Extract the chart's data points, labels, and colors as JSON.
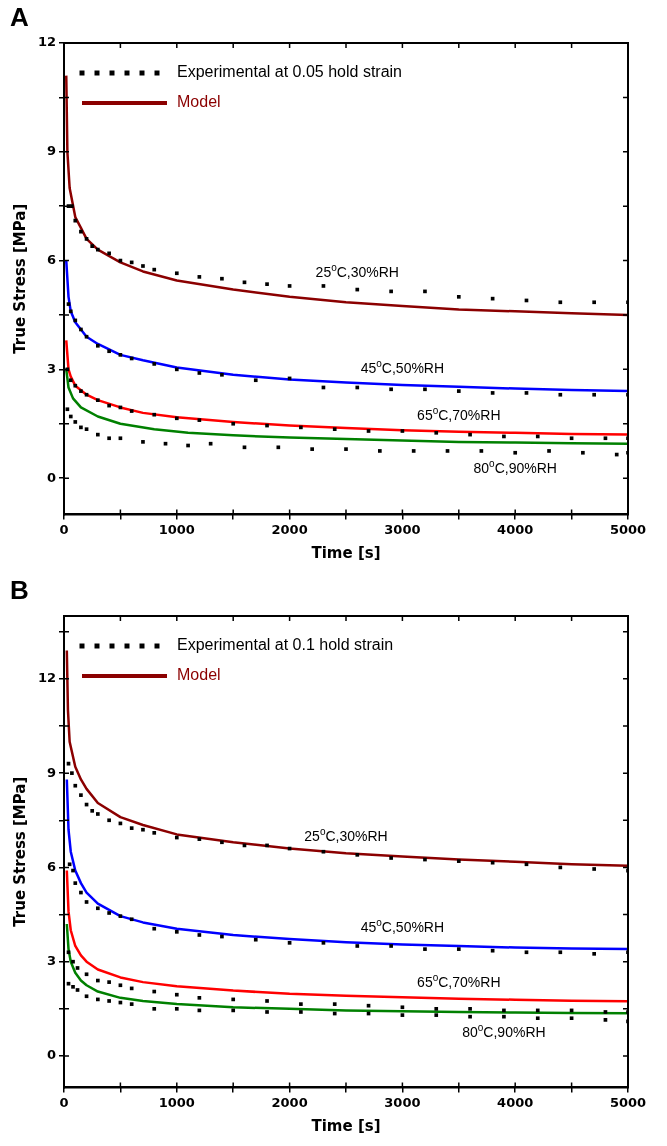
{
  "chart_data": [
    {
      "type": "line",
      "title": "A",
      "xlabel": "Time [s]",
      "ylabel": "True Stress [MPa]",
      "legend": "top left",
      "grid": false,
      "xlim": [
        0,
        5000
      ],
      "ylim": [
        -1,
        12
      ],
      "xticks": [
        0,
        {
          "value": 500,
          "label": null
        },
        1000,
        {
          "value": 1500,
          "label": null
        },
        2000,
        {
          "value": 2500,
          "label": null
        },
        3000,
        {
          "value": 3500,
          "label": null
        },
        4000,
        {
          "value": 4500,
          "label": null
        },
        5000
      ],
      "yticks": [
        0,
        {
          "value": 1.5,
          "label": null
        },
        3,
        {
          "value": 4.5,
          "label": null
        },
        6,
        {
          "value": 7.5,
          "label": null
        },
        9,
        {
          "value": 10.5,
          "label": null
        },
        12
      ],
      "annotations": [
        {
          "text": "25$^{o}$C,30%RH",
          "x": 2600,
          "y": 5.2
        },
        {
          "text": "45$^{o}$C,50%RH",
          "x": 3000,
          "y": 2.57
        },
        {
          "text": "65$^{o}$C,70%RH",
          "x": 3500,
          "y": 1.28
        },
        {
          "text": "80$^{o}$C,90%RH",
          "x": 4000,
          "y": 0.7
        }
      ],
      "series": [
        {
          "type": "scatter",
          "name": "Experimental at 0.05 hold strain",
          "color": "#000000",
          "marker": "square",
          "x": [
            40,
            70,
            100,
            150,
            200,
            250,
            300,
            400,
            500,
            600,
            700,
            800,
            1000,
            1200,
            1400,
            1600,
            1800,
            2000,
            2300,
            2600,
            2900,
            3200,
            3500,
            3800,
            4100,
            4400,
            4700,
            5000
          ],
          "values": [
            7.5,
            7.5,
            7.1,
            6.8,
            6.6,
            6.4,
            6.3,
            6.2,
            6.0,
            5.95,
            5.85,
            5.75,
            5.65,
            5.55,
            5.5,
            5.4,
            5.35,
            5.3,
            5.3,
            5.2,
            5.15,
            5.15,
            5.0,
            4.95,
            4.9,
            4.85,
            4.85,
            4.85
          ]
        },
        {
          "type": "scatter",
          "color": "#000000",
          "marker": "square",
          "x": [
            40,
            60,
            100,
            150,
            200,
            300,
            400,
            500,
            600,
            800,
            1000,
            1200,
            1400,
            1700,
            2000,
            2300,
            2600,
            2900,
            3200,
            3500,
            3800,
            4100,
            4400,
            4700,
            5000
          ],
          "values": [
            4.8,
            4.6,
            4.35,
            4.1,
            3.9,
            3.65,
            3.5,
            3.4,
            3.3,
            3.15,
            3.0,
            2.9,
            2.85,
            2.7,
            2.75,
            2.5,
            2.5,
            2.45,
            2.45,
            2.4,
            2.35,
            2.35,
            2.3,
            2.3,
            2.3
          ]
        },
        {
          "type": "scatter",
          "color": "#000000",
          "marker": "square",
          "x": [
            30,
            60,
            100,
            150,
            200,
            300,
            400,
            500,
            600,
            800,
            1000,
            1200,
            1500,
            1800,
            2100,
            2400,
            2700,
            3000,
            3300,
            3600,
            3900,
            4200,
            4500,
            4800,
            5000
          ],
          "values": [
            3.0,
            2.7,
            2.55,
            2.4,
            2.3,
            2.15,
            2.0,
            1.95,
            1.85,
            1.75,
            1.65,
            1.6,
            1.5,
            1.45,
            1.4,
            1.35,
            1.3,
            1.3,
            1.25,
            1.2,
            1.15,
            1.15,
            1.1,
            1.1,
            1.1
          ]
        },
        {
          "type": "scatter",
          "color": "#000000",
          "marker": "square",
          "x": [
            30,
            60,
            100,
            150,
            200,
            300,
            400,
            500,
            700,
            900,
            1100,
            1300,
            1600,
            1900,
            2200,
            2500,
            2800,
            3100,
            3400,
            3700,
            4000,
            4300,
            4600,
            4900,
            5000
          ],
          "values": [
            1.9,
            1.7,
            1.55,
            1.4,
            1.35,
            1.2,
            1.1,
            1.1,
            1.0,
            0.95,
            0.9,
            0.95,
            0.85,
            0.85,
            0.8,
            0.8,
            0.75,
            0.75,
            0.75,
            0.75,
            0.7,
            0.75,
            0.7,
            0.65,
            0.7
          ]
        },
        {
          "name": "Model",
          "color": "#8b0000",
          "x": [
            20,
            30,
            50,
            100,
            150,
            200,
            300,
            500,
            700,
            1000,
            1500,
            2000,
            2500,
            3000,
            3500,
            4000,
            4500,
            5000
          ],
          "values": [
            11.1,
            9.0,
            8.0,
            7.2,
            6.9,
            6.6,
            6.3,
            5.95,
            5.7,
            5.45,
            5.2,
            5.0,
            4.85,
            4.75,
            4.65,
            4.6,
            4.55,
            4.5
          ]
        },
        {
          "color": "#0000ff",
          "x": [
            20,
            40,
            60,
            100,
            200,
            300,
            500,
            700,
            1000,
            1500,
            2000,
            2500,
            3000,
            3500,
            4000,
            4500,
            5000
          ],
          "values": [
            6.0,
            5.0,
            4.6,
            4.3,
            3.9,
            3.7,
            3.4,
            3.25,
            3.05,
            2.85,
            2.72,
            2.64,
            2.57,
            2.52,
            2.47,
            2.43,
            2.4
          ]
        },
        {
          "color": "#ff0000",
          "x": [
            20,
            40,
            60,
            100,
            200,
            300,
            500,
            700,
            1000,
            1500,
            2000,
            2500,
            3000,
            3500,
            4000,
            4500,
            5000
          ],
          "values": [
            3.8,
            3.0,
            2.8,
            2.55,
            2.3,
            2.15,
            1.95,
            1.8,
            1.68,
            1.55,
            1.45,
            1.38,
            1.32,
            1.28,
            1.25,
            1.22,
            1.2
          ]
        },
        {
          "color": "#008000",
          "x": [
            20,
            40,
            80,
            150,
            300,
            500,
            800,
            1100,
            1500,
            2000,
            2500,
            3000,
            3500,
            4000,
            4500,
            5000
          ],
          "values": [
            3.0,
            2.5,
            2.2,
            1.95,
            1.7,
            1.5,
            1.35,
            1.25,
            1.18,
            1.12,
            1.08,
            1.04,
            1.0,
            0.98,
            0.96,
            0.95
          ]
        }
      ]
    },
    {
      "type": "line",
      "title": "B",
      "xlabel": "Time [s]",
      "ylabel": "True Stress [MPa]",
      "legend": "top left",
      "grid": false,
      "xlim": [
        0,
        5000
      ],
      "ylim": [
        -1,
        14
      ],
      "xticks": [
        0,
        {
          "value": 500,
          "label": null
        },
        1000,
        {
          "value": 1500,
          "label": null
        },
        2000,
        {
          "value": 2500,
          "label": null
        },
        3000,
        {
          "value": 3500,
          "label": null
        },
        4000,
        {
          "value": 4500,
          "label": null
        },
        5000
      ],
      "yticks": [
        0,
        {
          "value": 1.5,
          "label": null
        },
        3,
        {
          "value": 4.5,
          "label": null
        },
        6,
        {
          "value": 7.5,
          "label": null
        },
        9,
        {
          "value": 10.5,
          "label": null
        },
        12,
        {
          "value": 13.5,
          "label": null
        }
      ],
      "annotations": [
        {
          "text": "25$^{o}$C,30%RH",
          "x": 2500,
          "y": 6.45
        },
        {
          "text": "45$^{o}$C,50%RH",
          "x": 3000,
          "y": 3.55
        },
        {
          "text": "65$^{o}$C,70%RH",
          "x": 3500,
          "y": 1.82
        },
        {
          "text": "80$^{o}$C,90%RH",
          "x": 3900,
          "y": 1.25
        }
      ],
      "series": [
        {
          "type": "scatter",
          "name": "Experimental at 0.1 hold strain",
          "color": "#000000",
          "marker": "square",
          "x": [
            40,
            70,
            100,
            150,
            200,
            250,
            300,
            400,
            500,
            600,
            700,
            800,
            1000,
            1200,
            1400,
            1600,
            1800,
            2000,
            2300,
            2600,
            2900,
            3200,
            3500,
            3800,
            4100,
            4400,
            4700,
            5000
          ],
          "values": [
            9.3,
            9.0,
            8.6,
            8.3,
            8.0,
            7.8,
            7.7,
            7.5,
            7.4,
            7.25,
            7.2,
            7.1,
            6.95,
            6.9,
            6.8,
            6.7,
            6.7,
            6.6,
            6.5,
            6.4,
            6.3,
            6.25,
            6.2,
            6.15,
            6.1,
            6.0,
            5.95,
            5.9
          ]
        },
        {
          "type": "scatter",
          "color": "#000000",
          "marker": "square",
          "x": [
            50,
            80,
            100,
            150,
            200,
            300,
            400,
            500,
            600,
            800,
            1000,
            1200,
            1400,
            1700,
            2000,
            2300,
            2600,
            2900,
            3200,
            3500,
            3800,
            4100,
            4400,
            4700,
            5000
          ],
          "values": [
            6.1,
            5.9,
            5.5,
            5.2,
            4.9,
            4.7,
            4.55,
            4.45,
            4.35,
            4.05,
            3.95,
            3.85,
            3.8,
            3.7,
            3.6,
            3.6,
            3.5,
            3.5,
            3.4,
            3.4,
            3.35,
            3.3,
            3.3,
            3.25,
            3.3
          ]
        },
        {
          "type": "scatter",
          "color": "#000000",
          "marker": "square",
          "x": [
            40,
            80,
            120,
            200,
            300,
            400,
            500,
            600,
            800,
            1000,
            1200,
            1500,
            1800,
            2100,
            2400,
            2700,
            3000,
            3300,
            3600,
            3900,
            4200,
            4500,
            4800,
            5000
          ],
          "values": [
            3.3,
            3.0,
            2.8,
            2.6,
            2.4,
            2.35,
            2.25,
            2.15,
            2.05,
            1.95,
            1.85,
            1.8,
            1.75,
            1.65,
            1.65,
            1.6,
            1.55,
            1.5,
            1.5,
            1.45,
            1.45,
            1.45,
            1.4,
            1.4
          ]
        },
        {
          "type": "scatter",
          "color": "#000000",
          "marker": "square",
          "x": [
            40,
            80,
            120,
            200,
            300,
            400,
            500,
            600,
            800,
            1000,
            1200,
            1500,
            1800,
            2100,
            2400,
            2700,
            3000,
            3300,
            3600,
            3900,
            4200,
            4500,
            4800,
            5000
          ],
          "values": [
            2.3,
            2.2,
            2.1,
            1.9,
            1.8,
            1.75,
            1.7,
            1.65,
            1.5,
            1.5,
            1.45,
            1.45,
            1.4,
            1.4,
            1.35,
            1.35,
            1.3,
            1.3,
            1.25,
            1.25,
            1.2,
            1.2,
            1.15,
            1.1
          ]
        },
        {
          "name": "Model",
          "color": "#8b0000",
          "x": [
            25,
            35,
            50,
            100,
            150,
            200,
            300,
            500,
            700,
            1000,
            1500,
            2000,
            2500,
            3000,
            3500,
            4000,
            4500,
            5000
          ],
          "values": [
            12.9,
            11.0,
            10.0,
            9.2,
            8.8,
            8.5,
            8.05,
            7.6,
            7.35,
            7.05,
            6.8,
            6.6,
            6.45,
            6.35,
            6.25,
            6.18,
            6.1,
            6.05
          ]
        },
        {
          "color": "#0000ff",
          "x": [
            25,
            40,
            60,
            100,
            150,
            200,
            300,
            500,
            700,
            1000,
            1500,
            2000,
            2500,
            3000,
            3500,
            4000,
            4500,
            5000
          ],
          "values": [
            8.8,
            7.2,
            6.5,
            5.9,
            5.5,
            5.2,
            4.85,
            4.45,
            4.25,
            4.05,
            3.85,
            3.72,
            3.62,
            3.55,
            3.5,
            3.45,
            3.42,
            3.4
          ]
        },
        {
          "color": "#ff0000",
          "x": [
            25,
            40,
            60,
            100,
            150,
            200,
            300,
            500,
            700,
            1000,
            1500,
            2000,
            2500,
            3000,
            3500,
            4000,
            4500,
            5000
          ],
          "values": [
            5.9,
            4.6,
            4.0,
            3.5,
            3.2,
            3.0,
            2.75,
            2.5,
            2.35,
            2.22,
            2.08,
            1.98,
            1.92,
            1.87,
            1.82,
            1.79,
            1.76,
            1.74
          ]
        },
        {
          "color": "#008000",
          "x": [
            25,
            40,
            60,
            100,
            150,
            200,
            300,
            500,
            700,
            1000,
            1500,
            2000,
            2500,
            3000,
            3500,
            4000,
            4500,
            5000
          ],
          "values": [
            4.2,
            3.4,
            3.0,
            2.65,
            2.4,
            2.25,
            2.05,
            1.85,
            1.75,
            1.65,
            1.55,
            1.5,
            1.45,
            1.42,
            1.4,
            1.38,
            1.37,
            1.36
          ]
        }
      ]
    }
  ]
}
